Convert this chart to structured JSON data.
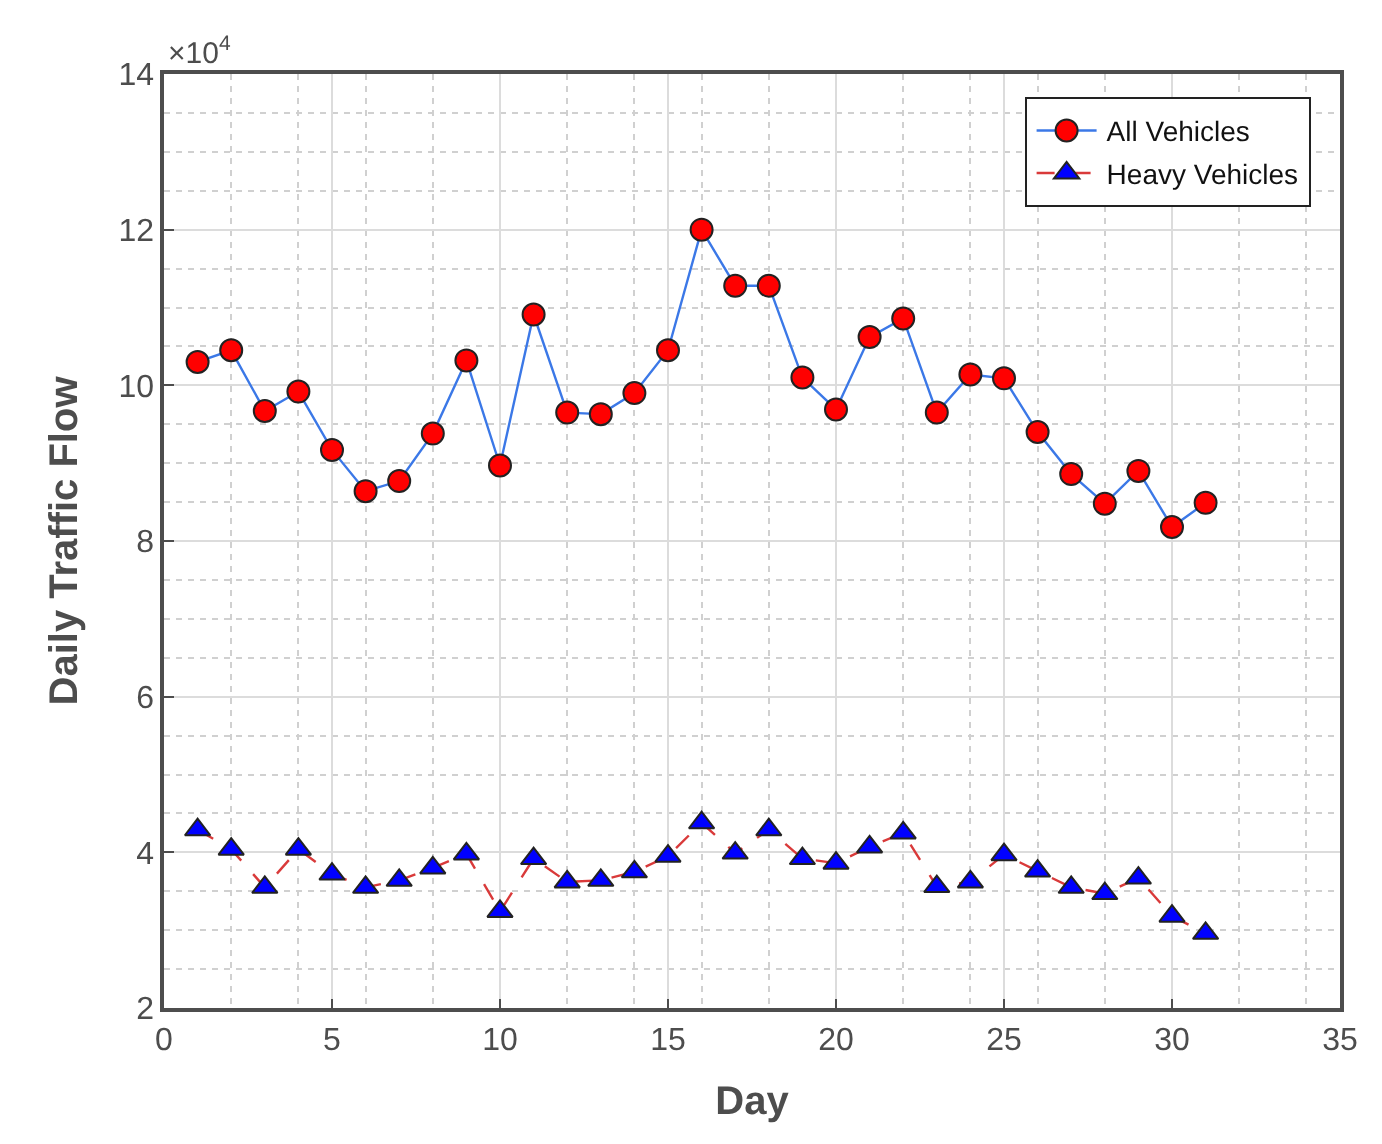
{
  "chart_data": {
    "type": "line",
    "x": [
      1,
      2,
      3,
      4,
      5,
      6,
      7,
      8,
      9,
      10,
      11,
      12,
      13,
      14,
      15,
      16,
      17,
      18,
      19,
      20,
      21,
      22,
      23,
      24,
      25,
      26,
      27,
      28,
      29,
      30,
      31
    ],
    "series": [
      {
        "name": "All Vehicles",
        "color": "#3b78e7",
        "line_style": "solid",
        "marker": "circle",
        "colors": [
          "#ff0000",
          "#ff0000",
          "#ff0000",
          "#ff0000",
          "#ff0000",
          "#ff0000",
          "#ff0000",
          "#ff0000",
          "#ff0000",
          "#ff0000",
          "#ff0000",
          "#ff0000",
          "#ff0000",
          "#ff0000",
          "#ff0000",
          "#ff0000",
          "#ff0000",
          "#ff0000",
          "#ff0000",
          "#ff0000",
          "#ff0000",
          "#ff0000",
          "#ff0000",
          "#ff0000",
          "#ff0000",
          "#ff0000",
          "#ff0000",
          "#ff0000",
          "#ff0000",
          "#ff0000",
          "#ff0000"
        ],
        "values": [
          10.3,
          10.45,
          9.67,
          9.92,
          9.17,
          8.64,
          8.77,
          9.38,
          10.32,
          8.97,
          10.91,
          9.65,
          9.63,
          9.9,
          10.45,
          12.0,
          11.28,
          11.28,
          10.1,
          9.69,
          10.62,
          10.86,
          9.65,
          10.14,
          10.09,
          9.4,
          8.86,
          8.48,
          8.9,
          8.18,
          8.49
        ]
      },
      {
        "name": "Heavy Vehicles",
        "color": "#d93a3a",
        "line_style": "dashed",
        "marker": "triangle",
        "colors": [
          "#0000ff",
          "#0000ff",
          "#0000ff",
          "#0000ff",
          "#0000ff",
          "#0000ff",
          "#0000ff",
          "#0000ff",
          "#0000ff",
          "#0000ff",
          "#0000ff",
          "#0000ff",
          "#0000ff",
          "#0000ff",
          "#0000ff",
          "#0000ff",
          "#0000ff",
          "#0000ff",
          "#0000ff",
          "#0000ff",
          "#0000ff",
          "#0000ff",
          "#0000ff",
          "#0000ff",
          "#0000ff",
          "#0000ff",
          "#0000ff",
          "#0000ff",
          "#0000ff",
          "#0000ff",
          "#0000ff"
        ],
        "values": [
          4.29,
          4.04,
          3.55,
          4.04,
          3.72,
          3.55,
          3.64,
          3.8,
          3.98,
          3.24,
          3.92,
          3.62,
          3.64,
          3.75,
          3.95,
          4.38,
          3.99,
          4.29,
          3.92,
          3.86,
          4.07,
          4.25,
          3.56,
          3.62,
          3.97,
          3.76,
          3.55,
          3.47,
          3.67,
          3.18,
          2.96
        ]
      }
    ],
    "xlabel": "Day",
    "ylabel": "Daily Traffic Flow",
    "annotations": [
      "×10$^{4}$"
    ],
    "xlim": [
      0,
      35
    ],
    "xticks": [
      0,
      5,
      10,
      15,
      20,
      25,
      30,
      35
    ],
    "ylim": [
      2,
      14
    ],
    "yticks": [
      2,
      4,
      6,
      8,
      10,
      12,
      14
    ],
    "grid": true,
    "legend": "top right"
  }
}
